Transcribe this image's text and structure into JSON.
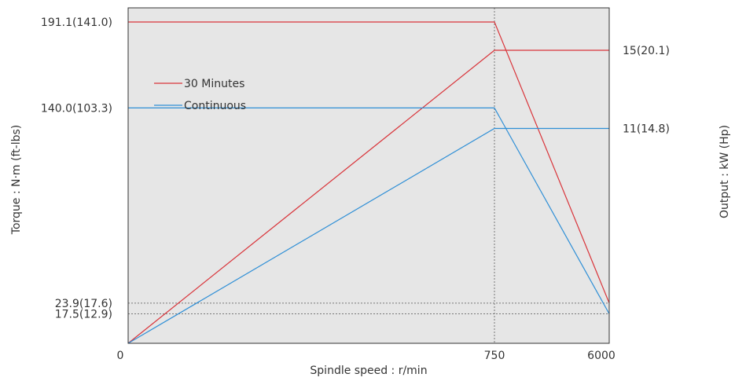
{
  "chart_data": {
    "type": "line",
    "xlabel": "Spindle speed : r/min",
    "ylabel_left": "Torque : N·m (ft-lbs)",
    "ylabel_right": "Output : kW (Hp)",
    "x_ticks": [
      "0",
      "750",
      "6000"
    ],
    "left_ticks": [
      {
        "label": "191.1(141.0)",
        "value": 191.1
      },
      {
        "label": "140.0(103.3)",
        "value": 140.0
      },
      {
        "label": "23.9(17.6)",
        "value": 23.9
      },
      {
        "label": "17.5(12.9)",
        "value": 17.5
      }
    ],
    "right_ticks": [
      {
        "label": "15(20.1)",
        "value": 15
      },
      {
        "label": "11(14.8)",
        "value": 11
      }
    ],
    "legend": [
      "30 Minutes",
      "Continuous"
    ],
    "series": [
      {
        "name": "30 Minutes",
        "kind": "torque",
        "color": "#d9343a",
        "points": [
          [
            0,
            191.1
          ],
          [
            750,
            191.1
          ],
          [
            6000,
            23.9
          ]
        ]
      },
      {
        "name": "30 Minutes",
        "kind": "output",
        "color": "#d9343a",
        "points": [
          [
            0,
            0
          ],
          [
            750,
            15
          ],
          [
            6000,
            15
          ]
        ]
      },
      {
        "name": "Continuous",
        "kind": "torque",
        "color": "#2f8fd6",
        "points": [
          [
            0,
            140.0
          ],
          [
            750,
            140.0
          ],
          [
            6000,
            17.5
          ]
        ]
      },
      {
        "name": "Continuous",
        "kind": "output",
        "color": "#2f8fd6",
        "points": [
          [
            0,
            0
          ],
          [
            750,
            11
          ],
          [
            6000,
            11
          ]
        ]
      }
    ],
    "dashed_guides": {
      "y_values": [
        23.9,
        17.5
      ],
      "x_values": [
        750
      ]
    },
    "plot_background": "#e6e6e6",
    "legend_position": "top-left"
  }
}
